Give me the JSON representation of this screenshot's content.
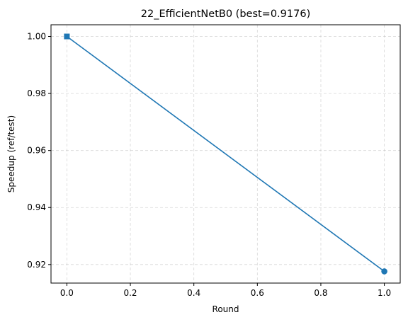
{
  "chart_data": {
    "type": "line",
    "title": "22_EfficientNetB0 (best=0.9176)",
    "xlabel": "Round",
    "ylabel": "Speedup (ref/test)",
    "xlim": [
      -0.05,
      1.05
    ],
    "ylim": [
      0.9135,
      1.0041
    ],
    "xticks": [
      0.0,
      0.2,
      0.4,
      0.6,
      0.8,
      1.0
    ],
    "xtick_labels": [
      "0.0",
      "0.2",
      "0.4",
      "0.6",
      "0.8",
      "1.0"
    ],
    "yticks": [
      0.92,
      0.94,
      0.96,
      0.98,
      1.0
    ],
    "ytick_labels": [
      "0.92",
      "0.94",
      "0.96",
      "0.98",
      "1.00"
    ],
    "grid": true,
    "series": [
      {
        "x": [
          0,
          1
        ],
        "values": [
          1.0,
          0.9176
        ],
        "color": "#1f77b4",
        "markers": [
          "square",
          "circle"
        ]
      }
    ]
  }
}
